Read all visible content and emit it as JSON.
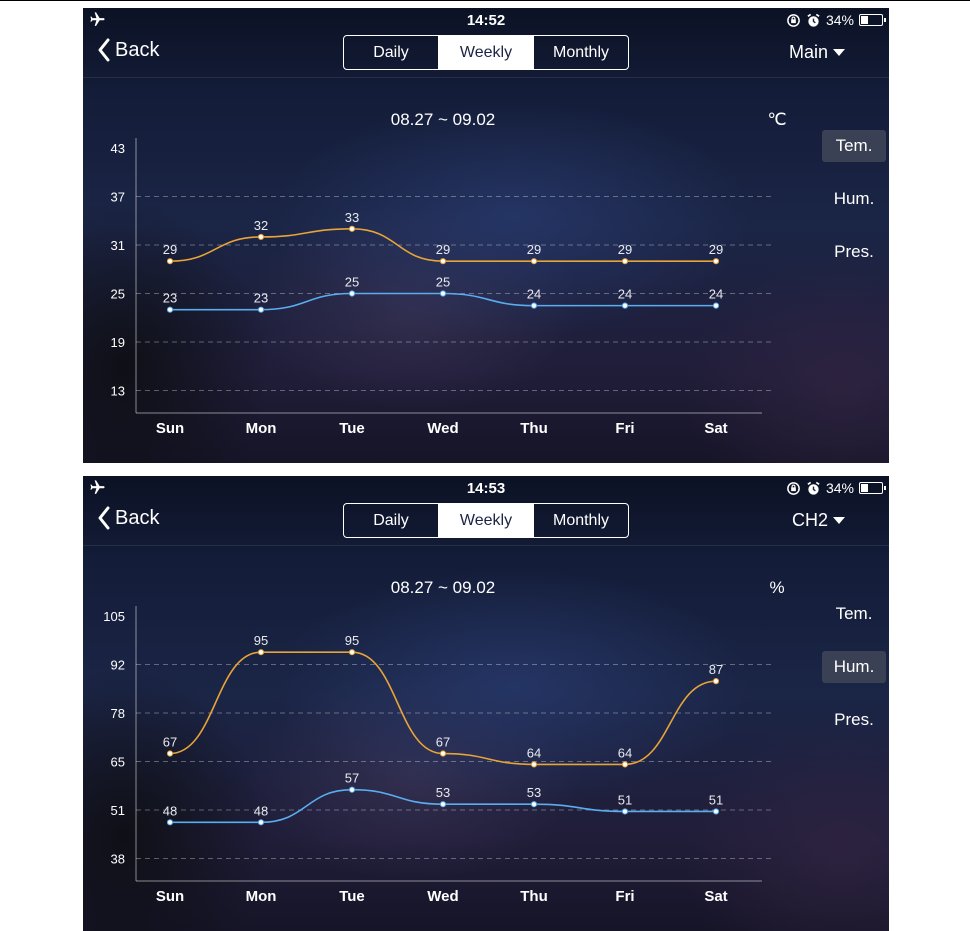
{
  "screens": [
    {
      "time": "14:52",
      "battery": "34%",
      "battery_level": 0.34,
      "back_label": "Back",
      "tabs": [
        "Daily",
        "Weekly",
        "Monthly"
      ],
      "active_tab": "Weekly",
      "channel": "Main",
      "date_range": "08.27 ~ 09.02",
      "unit": "℃",
      "side_menu": [
        "Tem.",
        "Hum.",
        "Pres."
      ],
      "active_side": "Tem.",
      "chart_data": {
        "type": "line",
        "categories": [
          "Sun",
          "Mon",
          "Tue",
          "Wed",
          "Thu",
          "Fri",
          "Sat"
        ],
        "y_ticks": [
          43,
          37,
          31,
          25,
          19,
          13
        ],
        "ylim": [
          13,
          43
        ],
        "grid": "dashed",
        "series": [
          {
            "color": "#e8a437",
            "values": [
              29,
              32,
              33,
              29,
              29,
              29,
              29
            ],
            "labels": [
              "29",
              "32",
              "33",
              "29",
              "29",
              "29",
              "29"
            ]
          },
          {
            "color": "#5aaef0",
            "values": [
              23,
              23,
              25,
              25,
              23.5,
              23.5,
              23.5
            ],
            "labels": [
              "23",
              "23",
              "25",
              "25",
              "24",
              "24",
              "24"
            ]
          }
        ]
      }
    },
    {
      "time": "14:53",
      "battery": "34%",
      "battery_level": 0.34,
      "back_label": "Back",
      "tabs": [
        "Daily",
        "Weekly",
        "Monthly"
      ],
      "active_tab": "Weekly",
      "channel": "CH2",
      "date_range": "08.27 ~ 09.02",
      "unit": "%",
      "side_menu": [
        "Tem.",
        "Hum.",
        "Pres."
      ],
      "active_side": "Hum.",
      "chart_data": {
        "type": "line",
        "categories": [
          "Sun",
          "Mon",
          "Tue",
          "Wed",
          "Thu",
          "Fri",
          "Sat"
        ],
        "y_ticks": [
          105,
          92,
          78,
          65,
          51,
          38
        ],
        "ylim": [
          38,
          105
        ],
        "grid": "dashed",
        "series": [
          {
            "color": "#e8a437",
            "values": [
              67,
              95,
              95,
              67,
              64,
              64,
              87
            ],
            "labels": [
              "67",
              "95",
              "95",
              "67",
              "64",
              "64",
              "87"
            ]
          },
          {
            "color": "#5aaef0",
            "values": [
              48,
              48,
              57,
              53,
              53,
              51,
              51
            ],
            "labels": [
              "48",
              "48",
              "57",
              "53",
              "53",
              "51",
              "51"
            ]
          }
        ]
      }
    }
  ]
}
